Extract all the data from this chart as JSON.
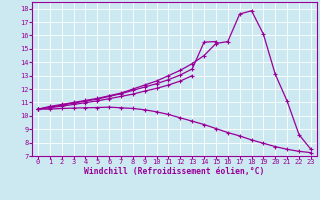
{
  "bg_color": "#cce8f0",
  "line_color": "#990099",
  "grid_color": "#ffffff",
  "x": [
    0,
    1,
    2,
    3,
    4,
    5,
    6,
    7,
    8,
    9,
    10,
    11,
    12,
    13,
    14,
    15,
    16,
    17,
    18,
    19,
    20,
    21,
    22,
    23
  ],
  "line1": [
    10.5,
    10.7,
    10.85,
    11.0,
    11.15,
    11.3,
    11.5,
    11.7,
    12.0,
    12.3,
    12.6,
    13.0,
    13.4,
    13.9,
    14.5,
    15.4,
    15.55,
    17.6,
    17.85,
    16.1,
    13.1,
    11.1,
    8.6,
    7.5
  ],
  "line2": [
    10.5,
    10.65,
    10.8,
    10.95,
    11.1,
    11.25,
    11.45,
    11.65,
    11.9,
    12.15,
    12.4,
    12.7,
    13.05,
    13.5,
    15.5,
    15.55,
    null,
    null,
    null,
    null,
    null,
    null,
    null,
    null
  ],
  "line3": [
    10.5,
    10.6,
    10.72,
    10.85,
    10.98,
    11.12,
    11.28,
    11.45,
    11.62,
    11.85,
    12.05,
    12.3,
    12.6,
    13.0,
    null,
    null,
    null,
    null,
    null,
    null,
    null,
    null,
    null,
    null
  ],
  "line4": [
    10.5,
    10.5,
    10.55,
    10.58,
    10.6,
    10.62,
    10.65,
    10.6,
    10.55,
    10.45,
    10.3,
    10.1,
    9.85,
    9.6,
    9.35,
    9.05,
    8.75,
    8.5,
    8.2,
    7.95,
    7.7,
    7.5,
    7.35,
    7.25
  ],
  "ylim": [
    7,
    18.5
  ],
  "xlim": [
    -0.5,
    23.5
  ],
  "yticks": [
    7,
    8,
    9,
    10,
    11,
    12,
    13,
    14,
    15,
    16,
    17,
    18
  ],
  "xticks": [
    0,
    1,
    2,
    3,
    4,
    5,
    6,
    7,
    8,
    9,
    10,
    11,
    12,
    13,
    14,
    15,
    16,
    17,
    18,
    19,
    20,
    21,
    22,
    23
  ],
  "xlabel": "Windchill (Refroidissement éolien,°C)",
  "xlabel_fontsize": 5.8,
  "tick_fontsize": 5.0,
  "marker_size": 3.5,
  "lw": 0.9
}
